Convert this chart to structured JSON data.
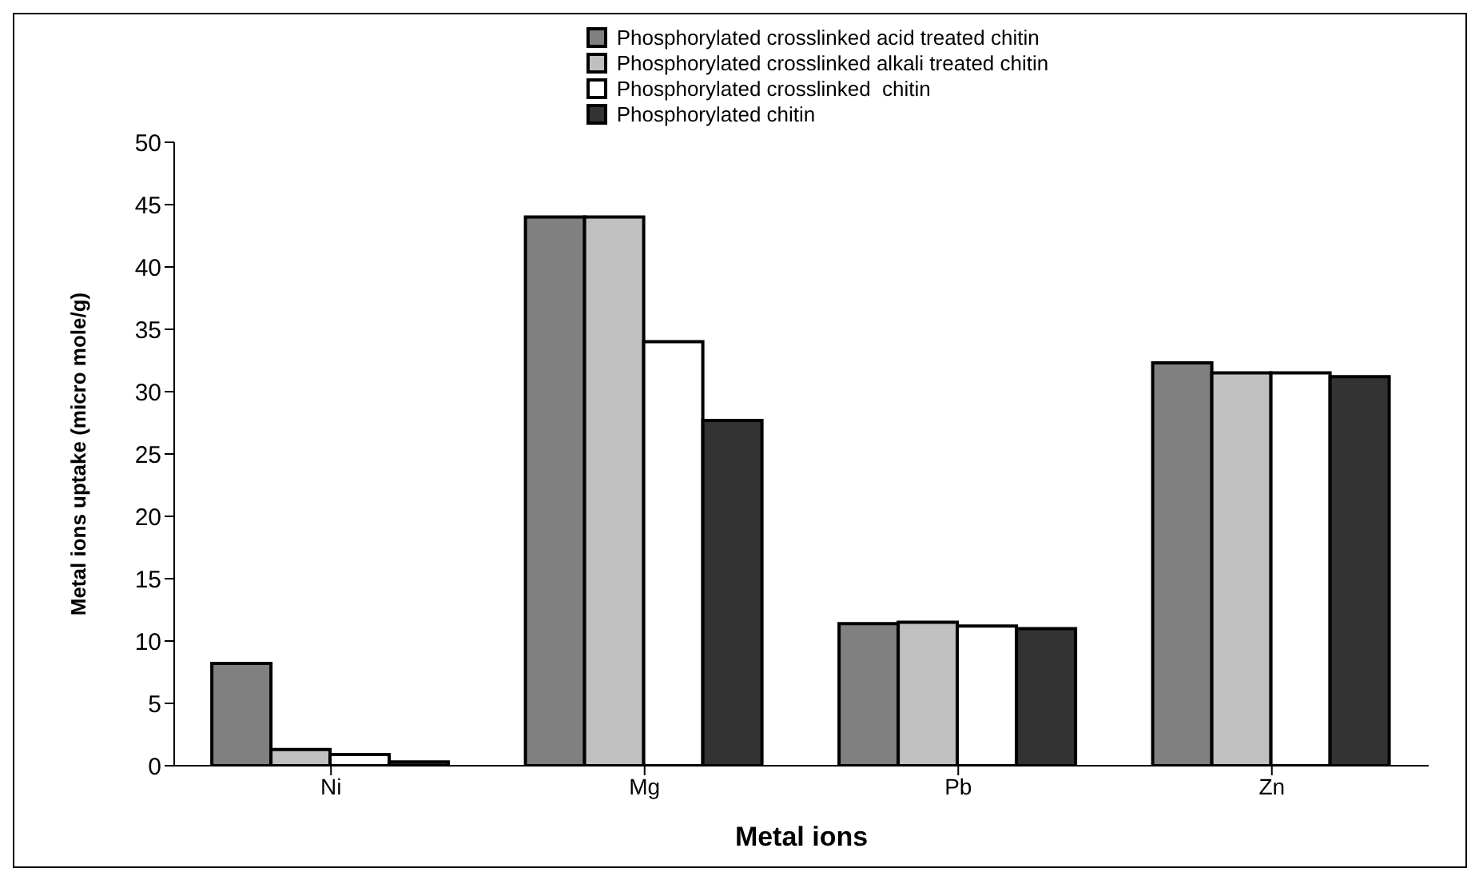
{
  "chart_data": {
    "type": "bar",
    "xlabel": "Metal ions",
    "ylabel": "Metal ions uptake (micro mole/g)",
    "categories": [
      "Ni",
      "Mg",
      "Pb",
      "Zn"
    ],
    "series": [
      {
        "name": "Phosphorylated crosslinked acid treated chitin",
        "color": "#808080",
        "values": [
          8.2,
          44,
          11.4,
          32.3
        ]
      },
      {
        "name": "Phosphorylated crosslinked alkali treated chitin",
        "color": "#c0c0c0",
        "values": [
          1.3,
          44,
          11.5,
          31.5
        ]
      },
      {
        "name": "Phosphorylated crosslinked  chitin",
        "color": "#ffffff",
        "values": [
          0.9,
          34,
          11.2,
          31.5
        ]
      },
      {
        "name": "Phosphorylated chitin",
        "color": "#333333",
        "values": [
          0.3,
          27.7,
          11.0,
          31.2
        ]
      }
    ],
    "ylim": [
      0,
      50
    ],
    "yticks": [
      0,
      5,
      10,
      15,
      20,
      25,
      30,
      35,
      40,
      45,
      50
    ],
    "grid": false,
    "legend": "top"
  }
}
